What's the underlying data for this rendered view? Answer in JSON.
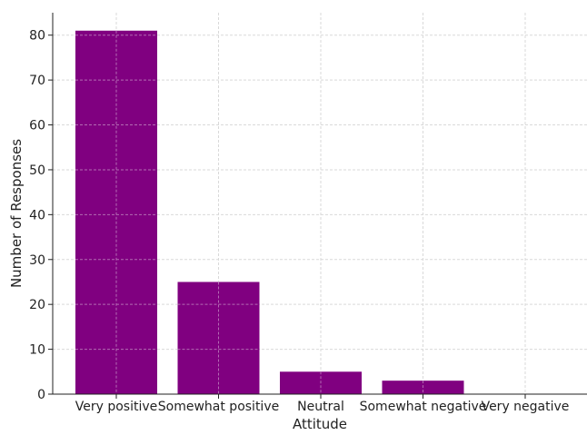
{
  "chart_data": {
    "type": "bar",
    "title": "",
    "xlabel": "Attitude",
    "ylabel": "Number of Responses",
    "categories": [
      "Very positive",
      "Somewhat positive",
      "Neutral",
      "Somewhat negative",
      "Very negative"
    ],
    "values": [
      81,
      25,
      5,
      3,
      0
    ],
    "ylim": [
      0,
      85
    ],
    "yticks": [
      0,
      10,
      20,
      30,
      40,
      50,
      60,
      70,
      80
    ],
    "grid": true,
    "bar_color": "#800080",
    "grid_color": "#d9d9d9"
  }
}
